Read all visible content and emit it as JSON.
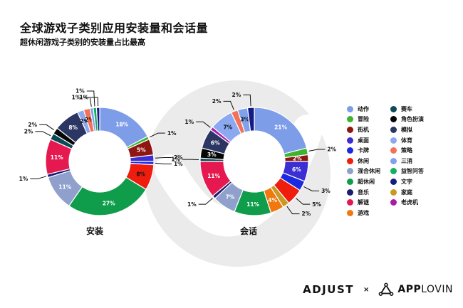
{
  "header": {
    "title": "全球游戏子类别应用安装量和会话量",
    "subtitle": "超休闲游戏子类别的安装量占比最高"
  },
  "colors": {
    "background": "#ffffff",
    "text": "#111111",
    "watermark": "#ebebeb"
  },
  "legend": {
    "columns": [
      [
        {
          "label": "动作",
          "color": "#7d9de8"
        },
        {
          "label": "冒险",
          "color": "#3cb42f"
        },
        {
          "label": "街机",
          "color": "#8e1511"
        },
        {
          "label": "桌面",
          "color": "#3b2fd4"
        },
        {
          "label": "卡牌",
          "color": "#1b2ae0"
        },
        {
          "label": "休闲",
          "color": "#ee1d0e"
        },
        {
          "label": "混合休闲",
          "color": "#8fa0cd"
        },
        {
          "label": "超休闲",
          "color": "#0f9d4b"
        },
        {
          "label": "音乐",
          "color": "#1b1b72"
        },
        {
          "label": "解谜",
          "color": "#e51950"
        },
        {
          "label": "游戏",
          "color": "#f1770f"
        }
      ],
      [
        {
          "label": "赛车",
          "color": "#0d4a56"
        },
        {
          "label": "角色扮演",
          "color": "#060606"
        },
        {
          "label": "模拟",
          "color": "#2b3663"
        },
        {
          "label": "体育",
          "color": "#8ba9f1"
        },
        {
          "label": "策略",
          "color": "#f27158"
        },
        {
          "label": "三消",
          "color": "#7fa2ef"
        },
        {
          "label": "益智问答",
          "color": "#12b161"
        },
        {
          "label": "文字",
          "color": "#141b85"
        },
        {
          "label": "家庭",
          "color": "#c89a24"
        },
        {
          "label": "老虎机",
          "color": "#a81ba8"
        }
      ]
    ]
  },
  "chart_data": [
    {
      "type": "pie",
      "subtype": "donut",
      "title": "安装",
      "units": "%",
      "slices": [
        {
          "name": "动作",
          "value": 18,
          "label": "18%",
          "color": "#7d9de8",
          "pos": "in",
          "dark": false
        },
        {
          "name": "冒险",
          "value": 1,
          "label": "1%",
          "color": "#3cb42f",
          "pos": "out"
        },
        {
          "name": "街机",
          "value": 5,
          "label": "5%",
          "color": "#8e1511",
          "pos": "in",
          "dark": false
        },
        {
          "name": "桌面",
          "value": 2,
          "label": "2%",
          "color": "#3b2fd4",
          "pos": "out"
        },
        {
          "name": "卡牌",
          "value": 1,
          "label": "1%",
          "color": "#1b2ae0",
          "pos": "out"
        },
        {
          "name": "休闲",
          "value": 8,
          "label": "8%",
          "color": "#ee1d0e",
          "pos": "in",
          "dark": true
        },
        {
          "name": "超休闲",
          "value": 27,
          "label": "27%",
          "color": "#0f9d4b",
          "pos": "in",
          "dark": false
        },
        {
          "name": "混合休闲",
          "value": 11,
          "label": "11%",
          "color": "#8fa0cd",
          "pos": "in",
          "dark": false
        },
        {
          "name": "音乐",
          "value": 1,
          "label": "1%",
          "color": "#1b1b72",
          "pos": "out"
        },
        {
          "name": "解谜",
          "value": 11,
          "label": "11%",
          "color": "#e51950",
          "pos": "in",
          "dark": false
        },
        {
          "name": "赛车",
          "value": 2,
          "label": "2%",
          "color": "#0d4a56",
          "pos": "out"
        },
        {
          "name": "角色扮演",
          "value": 2,
          "label": "2%",
          "color": "#060606",
          "pos": "out"
        },
        {
          "name": "模拟",
          "value": 8,
          "label": "8%",
          "color": "#2b3663",
          "pos": "in",
          "dark": false
        },
        {
          "name": "体育",
          "value": 2,
          "label": "2%",
          "color": "#8ba9f1",
          "pos": "in",
          "dark": true
        },
        {
          "name": "策略",
          "value": 2,
          "label": "2%",
          "color": "#f27158",
          "pos": "in",
          "dark": true
        },
        {
          "name": "三消",
          "value": 1,
          "label": "1%",
          "color": "#7fa2ef",
          "pos": "out"
        },
        {
          "name": "益智问答",
          "value": 1,
          "label": "1%",
          "color": "#12b161",
          "pos": "out"
        },
        {
          "name": "文字",
          "value": 1,
          "label": "1%",
          "color": "#141b85",
          "pos": "out"
        }
      ]
    },
    {
      "type": "pie",
      "subtype": "donut",
      "title": "会话",
      "units": "%",
      "slices": [
        {
          "name": "动作",
          "value": 21,
          "label": "21%",
          "color": "#7d9de8",
          "pos": "in",
          "dark": false
        },
        {
          "name": "冒险",
          "value": 2,
          "label": "2%",
          "color": "#3cb42f",
          "pos": "out"
        },
        {
          "name": "街机",
          "value": 2,
          "label": "2%",
          "color": "#8e1511",
          "pos": "in",
          "dark": false
        },
        {
          "name": "桌面",
          "value": 6,
          "label": "6%",
          "color": "#3b2fd4",
          "pos": "in",
          "dark": false
        },
        {
          "name": "卡牌",
          "value": 3,
          "label": "3%",
          "color": "#1b2ae0",
          "pos": "out"
        },
        {
          "name": "休闲",
          "value": 5,
          "label": "5%",
          "color": "#ee1d0e",
          "pos": "out"
        },
        {
          "name": "家庭",
          "value": 2,
          "label": "2%",
          "color": "#c89a24",
          "pos": "out"
        },
        {
          "name": "游戏",
          "value": 4,
          "label": "4%",
          "color": "#f1770f",
          "pos": "in",
          "dark": false
        },
        {
          "name": "超休闲",
          "value": 11,
          "label": "11%",
          "color": "#0f9d4b",
          "pos": "in",
          "dark": false
        },
        {
          "name": "混合休闲",
          "value": 7,
          "label": "7%",
          "color": "#8fa0cd",
          "pos": "in",
          "dark": false
        },
        {
          "name": "音乐",
          "value": 1,
          "label": "1%",
          "color": "#1b1b72",
          "pos": "out"
        },
        {
          "name": "解谜",
          "value": 11,
          "label": "11%",
          "color": "#e51950",
          "pos": "in",
          "dark": false
        },
        {
          "name": "赛车",
          "value": 1,
          "label": "1%",
          "color": "#0d4a56",
          "pos": "out"
        },
        {
          "name": "角色扮演",
          "value": 3,
          "label": "3%",
          "color": "#060606",
          "pos": "in",
          "dark": false
        },
        {
          "name": "模拟",
          "value": 6,
          "label": "6%",
          "color": "#2b3663",
          "pos": "in",
          "dark": false
        },
        {
          "name": "老虎机",
          "value": 1,
          "label": "1%",
          "color": "#a81ba8",
          "pos": "out"
        },
        {
          "name": "体育",
          "value": 7,
          "label": "7%",
          "color": "#8ba9f1",
          "pos": "in",
          "dark": true
        },
        {
          "name": "策略",
          "value": 2,
          "label": "2%",
          "color": "#f27158",
          "pos": "out"
        },
        {
          "name": "三消",
          "value": 3,
          "label": "3%",
          "color": "#7fa2ef",
          "pos": "in",
          "dark": true
        },
        {
          "name": "文字",
          "value": 2,
          "label": "2%",
          "color": "#141b85",
          "pos": "out"
        }
      ]
    }
  ],
  "footer": {
    "adjust_label": "ADJUST",
    "x_label": "×",
    "applovin_app": "APP",
    "applovin_lovin": "LOVIN"
  }
}
